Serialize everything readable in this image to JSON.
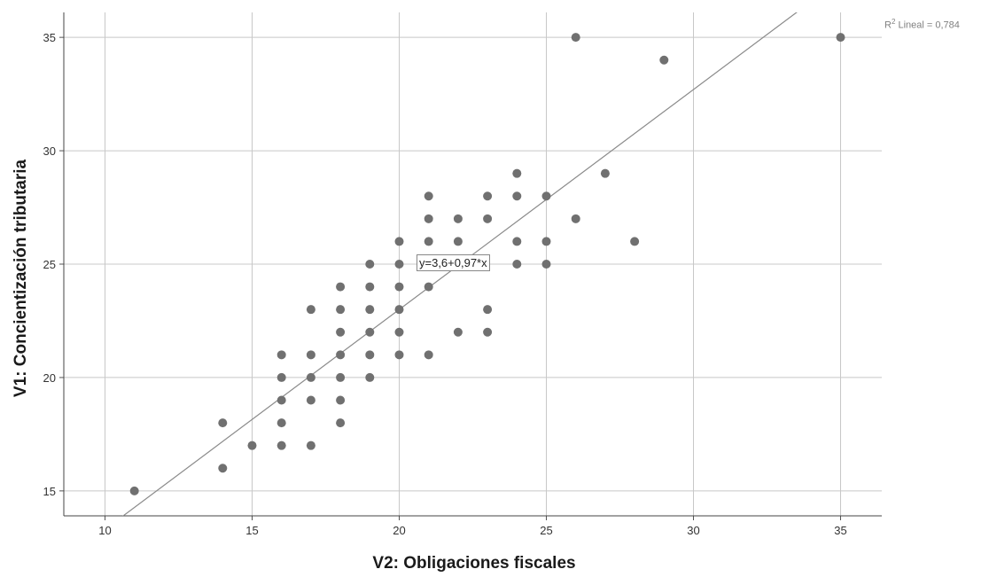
{
  "chart_data": {
    "type": "scatter",
    "title": "",
    "xlabel": "V2: Obligaciones fiscales",
    "ylabel": "V1: Concientización tributaria",
    "xlim": [
      8.6,
      36.4
    ],
    "ylim": [
      13.9,
      36.1
    ],
    "x_ticks": [
      10,
      15,
      20,
      25,
      30,
      35
    ],
    "y_ticks": [
      15,
      20,
      25,
      30,
      35
    ],
    "grid": true,
    "fit_line": {
      "intercept": 3.6,
      "slope": 0.97,
      "label": "y=3,6+0,97*x"
    },
    "r2": {
      "prefix": "R",
      "sup": "2",
      "text": " Lineal = 0,784"
    },
    "points": [
      [
        11,
        15
      ],
      [
        14,
        16
      ],
      [
        14,
        18
      ],
      [
        15,
        17
      ],
      [
        16,
        17
      ],
      [
        16,
        18
      ],
      [
        16,
        19
      ],
      [
        16,
        20
      ],
      [
        16,
        21
      ],
      [
        17,
        17
      ],
      [
        17,
        19
      ],
      [
        17,
        20
      ],
      [
        17,
        21
      ],
      [
        17,
        23
      ],
      [
        18,
        18
      ],
      [
        18,
        19
      ],
      [
        18,
        20
      ],
      [
        18,
        21
      ],
      [
        18,
        22
      ],
      [
        18,
        23
      ],
      [
        18,
        24
      ],
      [
        19,
        20
      ],
      [
        19,
        21
      ],
      [
        19,
        22
      ],
      [
        19,
        23
      ],
      [
        19,
        24
      ],
      [
        19,
        25
      ],
      [
        20,
        21
      ],
      [
        20,
        22
      ],
      [
        20,
        23
      ],
      [
        20,
        24
      ],
      [
        20,
        25
      ],
      [
        20,
        26
      ],
      [
        21,
        21
      ],
      [
        21,
        24
      ],
      [
        21,
        26
      ],
      [
        21,
        27
      ],
      [
        21,
        28
      ],
      [
        22,
        22
      ],
      [
        22,
        26
      ],
      [
        22,
        27
      ],
      [
        23,
        22
      ],
      [
        23,
        23
      ],
      [
        23,
        27
      ],
      [
        23,
        28
      ],
      [
        24,
        25
      ],
      [
        24,
        26
      ],
      [
        24,
        28
      ],
      [
        24,
        29
      ],
      [
        25,
        25
      ],
      [
        25,
        26
      ],
      [
        25,
        28
      ],
      [
        26,
        27
      ],
      [
        26,
        35
      ],
      [
        27,
        29
      ],
      [
        28,
        26
      ],
      [
        29,
        34
      ],
      [
        35,
        35
      ]
    ],
    "point_color": "#707070",
    "line_color": "#8a8a8a",
    "grid_color": "#c8c8c8"
  }
}
